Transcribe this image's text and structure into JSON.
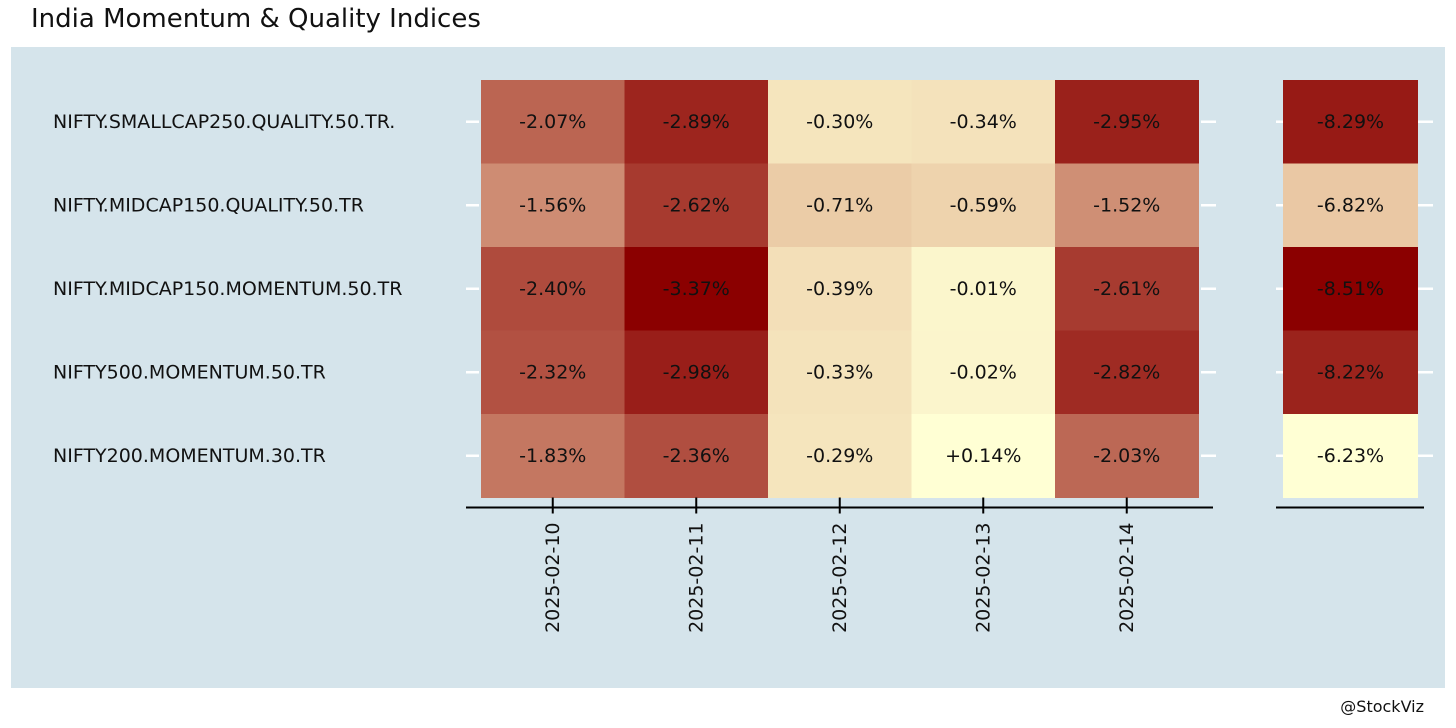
{
  "title": "India Momentum & Quality Indices",
  "credit": "@StockViz",
  "colors": {
    "panel_background": "#d5e4eb",
    "scale_low": "#8b0000",
    "scale_mid": "#e8c4a0",
    "scale_high": "#ffffd4"
  },
  "chart_data": {
    "type": "heatmap",
    "title": "India Momentum & Quality Indices",
    "rows": [
      "NIFTY.SMALLCAP250.QUALITY.50.TR.",
      "NIFTY.MIDCAP150.QUALITY.50.TR",
      "NIFTY.MIDCAP150.MOMENTUM.50.TR",
      "NIFTY500.MOMENTUM.50.TR",
      "NIFTY200.MOMENTUM.30.TR"
    ],
    "columns": [
      "2025-02-10",
      "2025-02-11",
      "2025-02-12",
      "2025-02-13",
      "2025-02-14"
    ],
    "values": [
      [
        -2.07,
        -2.89,
        -0.3,
        -0.34,
        -2.95
      ],
      [
        -1.56,
        -2.62,
        -0.71,
        -0.59,
        -1.52
      ],
      [
        -2.4,
        -3.37,
        -0.39,
        -0.01,
        -2.61
      ],
      [
        -2.32,
        -2.98,
        -0.33,
        -0.02,
        -2.82
      ],
      [
        -1.83,
        -2.36,
        -0.29,
        0.14,
        -2.03
      ]
    ],
    "labels": [
      [
        "-2.07%",
        "-2.89%",
        "-0.30%",
        "-0.34%",
        "-2.95%"
      ],
      [
        "-1.56%",
        "-2.62%",
        "-0.71%",
        "-0.59%",
        "-1.52%"
      ],
      [
        "-2.40%",
        "-3.37%",
        "-0.39%",
        "-0.01%",
        "-2.61%"
      ],
      [
        "-2.32%",
        "-2.98%",
        "-0.33%",
        "-0.02%",
        "-2.82%"
      ],
      [
        "-1.83%",
        "-2.36%",
        "-0.29%",
        "+0.14%",
        "-2.03%"
      ]
    ],
    "totals": [
      -8.29,
      -6.82,
      -8.51,
      -8.22,
      -6.23
    ],
    "total_labels": [
      "-8.29%",
      "-6.82%",
      "-8.51%",
      "-8.22%",
      "-6.23%"
    ],
    "legend": "none"
  }
}
